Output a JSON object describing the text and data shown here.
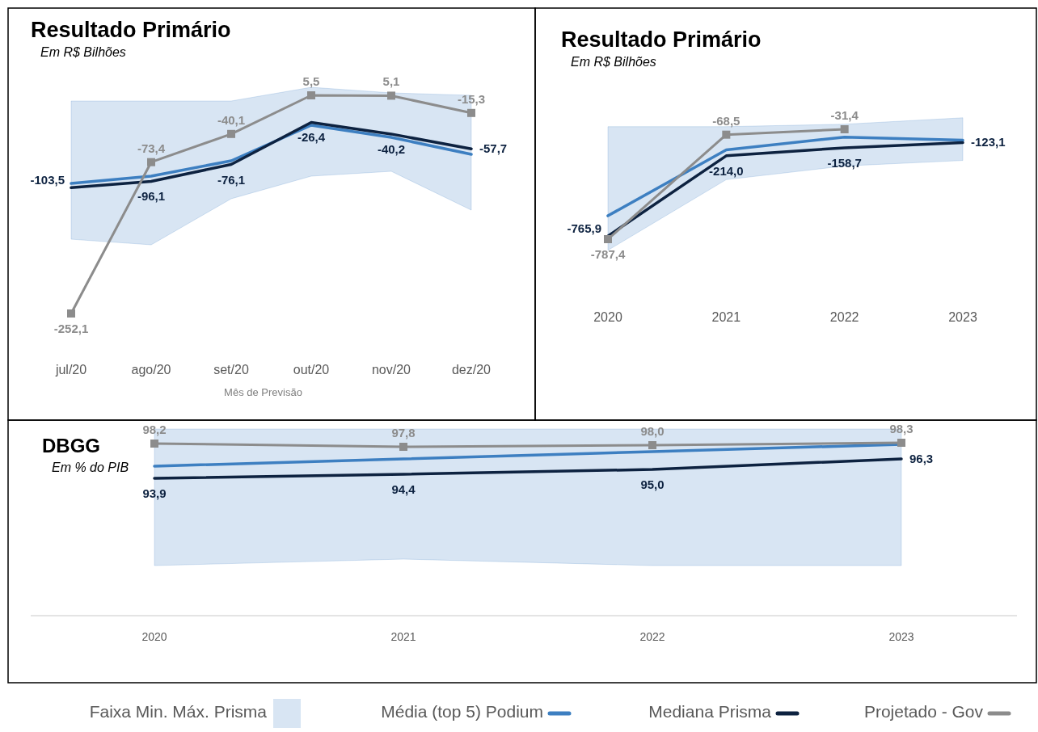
{
  "chart_data": [
    {
      "type": "line",
      "title": "Resultado Primário",
      "subtitle": "Em R$ Bilhões",
      "xlabel": "Mês de Previsão",
      "categories": [
        "jul/20",
        "ago/20",
        "set/20",
        "out/20",
        "nov/20",
        "dez/20"
      ],
      "legend": "bottom",
      "tick_labels": "x",
      "annotations": [
        "Faixa Min. Máx. Prisma"
      ],
      "series": [
        {
          "name": "Média (top 5) Podium",
          "color": "#3d7fc1",
          "values": [
            -98.5,
            -89.9,
            -71.8,
            -29.8,
            -44.1,
            -64.2
          ],
          "upper": [
            -1.2,
            -1.2,
            -1.2,
            15,
            8.4,
            5.5
          ],
          "lower": [
            -164.4,
            -171,
            -116.6,
            -89.9,
            -84.2,
            -130
          ]
        },
        {
          "name": "Mediana Prisma",
          "color": "#0d2240",
          "values": [
            -103.5,
            -96.1,
            -76.1,
            -26.4,
            -40.2,
            -57.7
          ],
          "value_labels": [
            "-103,5",
            "-96,1",
            "-76,1",
            "-26,4",
            "-40,2",
            "-57,7"
          ]
        },
        {
          "name": "Projetado - Gov",
          "color": "#8c8c8c",
          "marker": "square",
          "values": [
            -252.1,
            -73.4,
            -40.1,
            5.5,
            5.1,
            -15.3
          ],
          "value_labels": [
            "-252,1",
            "-73,4",
            "-40,1",
            "5,5",
            "5,1",
            "-15,3"
          ]
        }
      ]
    },
    {
      "type": "line",
      "title": "Resultado Primário",
      "subtitle": "Em R$ Bilhões",
      "categories": [
        "2020",
        "2021",
        "2022",
        "2023"
      ],
      "legend": "bottom",
      "tick_labels": "x",
      "series": [
        {
          "name": "Média (top 5) Podium",
          "color": "#3d7fc1",
          "values": [
            -626.5,
            -173.5,
            -85,
            -107
          ],
          "upper": [
            -13.3,
            -13.3,
            3.3,
            47.5
          ],
          "lower": [
            -864,
            -378,
            -284,
            -246
          ]
        },
        {
          "name": "Mediana Prisma",
          "color": "#0d2240",
          "values": [
            -765.9,
            -214.0,
            -158.7,
            -123.1
          ],
          "value_labels": [
            "-765,9",
            "-214,0",
            "-158,7",
            "-123,1"
          ]
        },
        {
          "name": "Projetado - Gov",
          "color": "#8c8c8c",
          "marker": "square",
          "values": [
            -787.4,
            -68.5,
            -31.4,
            null
          ],
          "value_labels": [
            "-787,4",
            "-68,5",
            "-31,4",
            null
          ]
        }
      ]
    },
    {
      "type": "line",
      "title": "DBGG",
      "subtitle": "Em % do PIB",
      "categories": [
        "2020",
        "2021",
        "2022",
        "2023"
      ],
      "legend": "bottom",
      "tick_labels": "x",
      "series": [
        {
          "name": "Média (top 5) Podium",
          "color": "#3d7fc1",
          "values": [
            95.4,
            96.3,
            97.2,
            98.1
          ],
          "upper": [
            100.0,
            100.0,
            100.0,
            100.0
          ],
          "lower": [
            83.1,
            83.9,
            83.1,
            83.1
          ]
        },
        {
          "name": "Mediana Prisma",
          "color": "#0d2240",
          "values": [
            93.9,
            94.4,
            95.0,
            96.3
          ],
          "value_labels": [
            "93,9",
            "94,4",
            "95,0",
            "96,3"
          ]
        },
        {
          "name": "Projetado - Gov",
          "color": "#8c8c8c",
          "marker": "square",
          "values": [
            98.2,
            97.8,
            98.0,
            98.3
          ],
          "value_labels": [
            "98,2",
            "97,8",
            "98,0",
            "98,3"
          ]
        }
      ]
    }
  ]
}
